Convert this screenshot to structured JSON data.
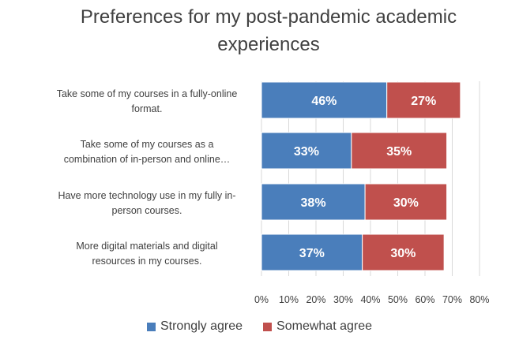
{
  "chart_data": {
    "type": "bar",
    "orientation": "horizontal",
    "stacked": true,
    "title": "Preferences for my post-pandemic academic experiences",
    "categories": [
      "Take some of my courses in a fully-online format.",
      "Take some of my courses as a combination of in-person and online…",
      "Have more technology use in my fully in-person courses.",
      "More digital materials and digital resources in my courses."
    ],
    "series": [
      {
        "name": "Strongly agree",
        "values": [
          46,
          33,
          38,
          37
        ],
        "labels": [
          "46%",
          "33%",
          "38%",
          "37%"
        ],
        "color": "#4a7ebb"
      },
      {
        "name": "Somewhat agree",
        "values": [
          27,
          35,
          30,
          30
        ],
        "labels": [
          "27%",
          "35%",
          "30%",
          "30%"
        ],
        "color": "#c0504d"
      }
    ],
    "xlim": [
      0,
      80
    ],
    "xticks": [
      "0%",
      "10%",
      "20%",
      "30%",
      "40%",
      "50%",
      "60%",
      "70%",
      "80%"
    ],
    "xlabel": "",
    "ylabel": "",
    "grid": true,
    "legend_position": "bottom"
  }
}
